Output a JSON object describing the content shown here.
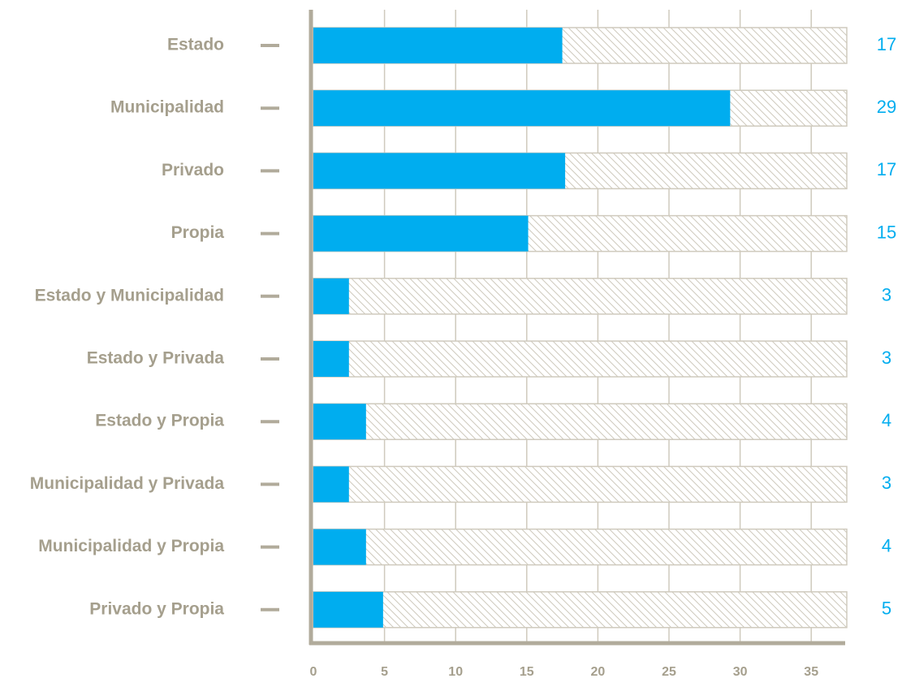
{
  "colors": {
    "bar": "#00adef",
    "value_label": "#00adef",
    "axis": "#b1ab9b",
    "grid": "#cfcabd",
    "label": "#a59f8d",
    "hatch_stroke": "#cfcabd",
    "hatch_fill": "#ffffff"
  },
  "chart_data": {
    "type": "bar",
    "orientation": "horizontal",
    "categories": [
      "Estado",
      "Municipalidad",
      "Privado",
      "Propia",
      "Estado y Municipalidad",
      "Estado y Privada",
      "Estado y Propia",
      "Municipalidad y Privada",
      "Municipalidad y Propia",
      "Privado y Propia"
    ],
    "values": [
      17,
      29,
      17,
      15,
      3,
      3,
      4,
      3,
      4,
      5
    ],
    "bar_lengths": [
      17.5,
      29.3,
      17.7,
      15.1,
      2.5,
      2.5,
      3.7,
      2.5,
      3.7,
      4.9
    ],
    "xlim": [
      0,
      37.5
    ],
    "xticks": [
      0,
      5,
      10,
      15,
      20,
      25,
      30,
      35
    ],
    "background_bar": "hatched full-range track",
    "grid": true,
    "title": "",
    "xlabel": "",
    "ylabel": ""
  }
}
